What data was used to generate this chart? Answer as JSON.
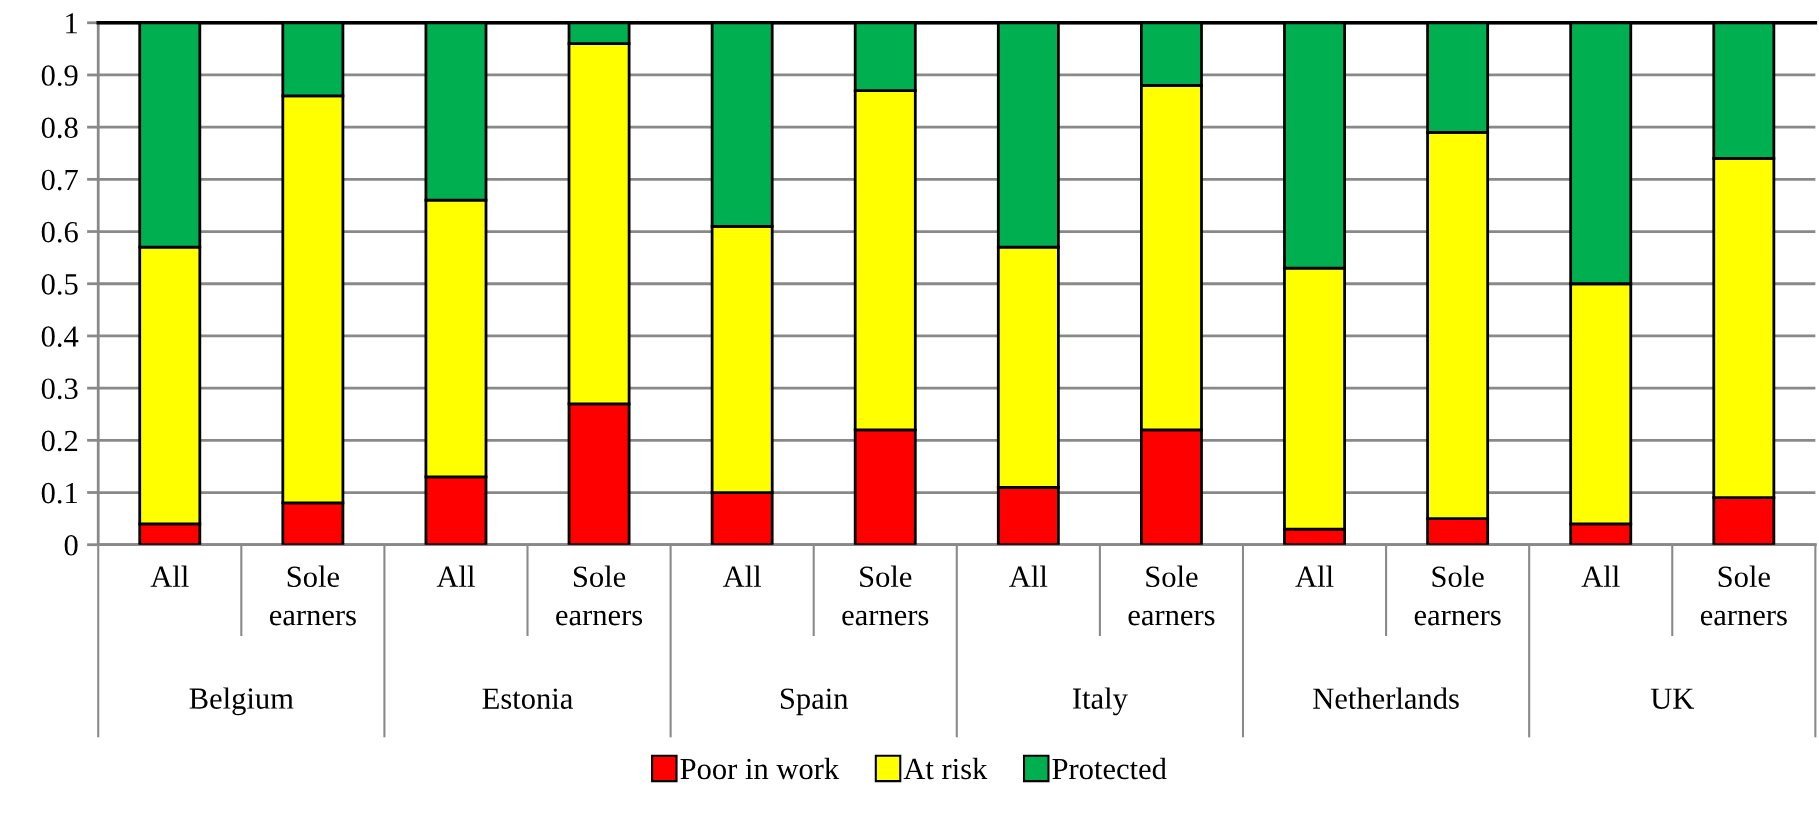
{
  "chart_data": {
    "type": "bar",
    "stacked": true,
    "categories": [
      "All",
      "Sole earners",
      "All",
      "Sole earners",
      "All",
      "Sole earners",
      "All",
      "Sole earners",
      "All",
      "Sole earners",
      "All",
      "Sole earners"
    ],
    "series": [
      {
        "name": "Poor in work",
        "color": "#ff0000",
        "values": [
          0.04,
          0.08,
          0.13,
          0.27,
          0.1,
          0.22,
          0.11,
          0.22,
          0.03,
          0.05,
          0.04,
          0.09
        ]
      },
      {
        "name": "At risk",
        "color": "#ffff00",
        "values": [
          0.53,
          0.78,
          0.53,
          0.69,
          0.51,
          0.65,
          0.46,
          0.66,
          0.5,
          0.74,
          0.46,
          0.65
        ]
      },
      {
        "name": "Protected",
        "color": "#00b050",
        "values": [
          0.43,
          0.14,
          0.34,
          0.04,
          0.39,
          0.13,
          0.43,
          0.12,
          0.47,
          0.21,
          0.5,
          0.26
        ]
      }
    ],
    "annotations": [
      "Belgium",
      "Estonia",
      "Spain",
      "Italy",
      "Netherlands",
      "UK"
    ],
    "ylim": [
      0,
      1
    ],
    "yticks": [
      0,
      0.1,
      0.2,
      0.3,
      0.4,
      0.5,
      0.6,
      0.7,
      0.8,
      0.9,
      1
    ],
    "grid": "y",
    "legend": "bottom"
  }
}
